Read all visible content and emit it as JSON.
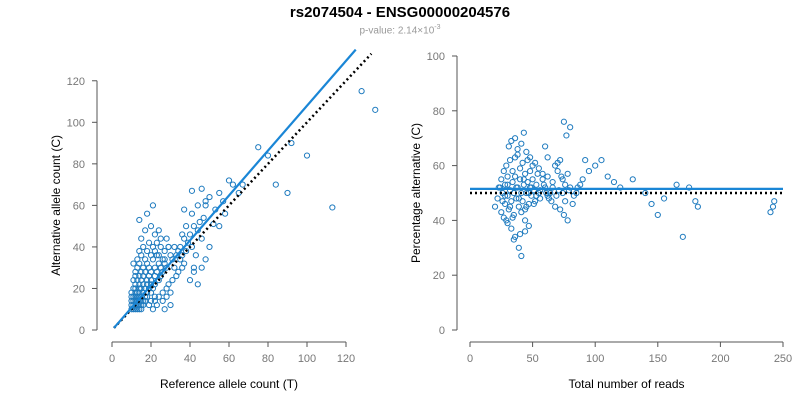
{
  "title": "rs2074504 - ENSG00000204576",
  "subtitle": {
    "prefix": "p-value: 2.14×10",
    "exponent": "-3"
  },
  "colors": {
    "points": "#1f7bbf",
    "fit": "#1a86d6",
    "reference": "#000000",
    "axis": "#555555",
    "ticks": "#777777"
  },
  "chart_data": [
    {
      "type": "scatter",
      "xlabel": "Reference allele count (T)",
      "ylabel": "Alternative allele count (C)",
      "xlim": [
        0,
        140
      ],
      "ylim": [
        0,
        130
      ],
      "xticks": [
        0,
        20,
        40,
        60,
        80,
        100,
        120
      ],
      "yticks": [
        0,
        20,
        40,
        60,
        80,
        100,
        120
      ],
      "grid": false,
      "fit_line": {
        "x": [
          1,
          125
        ],
        "y": [
          1,
          135
        ]
      },
      "reference_line": {
        "x": [
          1,
          133
        ],
        "y": [
          1,
          133
        ]
      },
      "points": [
        [
          10,
          10
        ],
        [
          11,
          10
        ],
        [
          12,
          10
        ],
        [
          13,
          10
        ],
        [
          14,
          10
        ],
        [
          15,
          10
        ],
        [
          10,
          12
        ],
        [
          11,
          12
        ],
        [
          12,
          12
        ],
        [
          13,
          12
        ],
        [
          14,
          12
        ],
        [
          15,
          12
        ],
        [
          16,
          12
        ],
        [
          10,
          14
        ],
        [
          11,
          14
        ],
        [
          12,
          14
        ],
        [
          13,
          14
        ],
        [
          14,
          14
        ],
        [
          15,
          14
        ],
        [
          16,
          14
        ],
        [
          17,
          14
        ],
        [
          10,
          16
        ],
        [
          11,
          16
        ],
        [
          12,
          16
        ],
        [
          13,
          16
        ],
        [
          14,
          16
        ],
        [
          15,
          16
        ],
        [
          17,
          16
        ],
        [
          18,
          16
        ],
        [
          10,
          18
        ],
        [
          12,
          18
        ],
        [
          13,
          18
        ],
        [
          14,
          18
        ],
        [
          16,
          18
        ],
        [
          18,
          18
        ],
        [
          20,
          18
        ],
        [
          11,
          20
        ],
        [
          12,
          20
        ],
        [
          14,
          20
        ],
        [
          15,
          20
        ],
        [
          17,
          20
        ],
        [
          19,
          20
        ],
        [
          21,
          20
        ],
        [
          12,
          22
        ],
        [
          14,
          22
        ],
        [
          16,
          22
        ],
        [
          18,
          22
        ],
        [
          20,
          22
        ],
        [
          22,
          22
        ],
        [
          11,
          24
        ],
        [
          13,
          24
        ],
        [
          15,
          24
        ],
        [
          18,
          24
        ],
        [
          20,
          24
        ],
        [
          24,
          24
        ],
        [
          12,
          26
        ],
        [
          14,
          26
        ],
        [
          16,
          26
        ],
        [
          19,
          26
        ],
        [
          22,
          26
        ],
        [
          25,
          26
        ],
        [
          12,
          28
        ],
        [
          15,
          28
        ],
        [
          17,
          28
        ],
        [
          20,
          28
        ],
        [
          23,
          28
        ],
        [
          26,
          28
        ],
        [
          13,
          30
        ],
        [
          16,
          30
        ],
        [
          19,
          30
        ],
        [
          22,
          30
        ],
        [
          25,
          30
        ],
        [
          28,
          30
        ],
        [
          11,
          32
        ],
        [
          14,
          32
        ],
        [
          18,
          32
        ],
        [
          24,
          32
        ],
        [
          27,
          32
        ],
        [
          13,
          34
        ],
        [
          17,
          34
        ],
        [
          21,
          34
        ],
        [
          26,
          34
        ],
        [
          15,
          36
        ],
        [
          20,
          36
        ],
        [
          24,
          36
        ],
        [
          30,
          36
        ],
        [
          14,
          38
        ],
        [
          18,
          38
        ],
        [
          22,
          38
        ],
        [
          27,
          38
        ],
        [
          16,
          40
        ],
        [
          21,
          40
        ],
        [
          25,
          40
        ],
        [
          29,
          40
        ],
        [
          19,
          42
        ],
        [
          23,
          42
        ],
        [
          22,
          46
        ],
        [
          28,
          44
        ],
        [
          15,
          44
        ],
        [
          17,
          48
        ],
        [
          14,
          53
        ],
        [
          18,
          56
        ],
        [
          21,
          60
        ],
        [
          20,
          50
        ],
        [
          25,
          44
        ],
        [
          24,
          48
        ],
        [
          20,
          14
        ],
        [
          22,
          14
        ],
        [
          24,
          16
        ],
        [
          26,
          18
        ],
        [
          28,
          20
        ],
        [
          22,
          16
        ],
        [
          19,
          12
        ],
        [
          21,
          10
        ],
        [
          23,
          12
        ],
        [
          26,
          14
        ],
        [
          28,
          16
        ],
        [
          30,
          12
        ],
        [
          27,
          10
        ],
        [
          29,
          22
        ],
        [
          31,
          24
        ],
        [
          33,
          26
        ],
        [
          30,
          18
        ],
        [
          32,
          30
        ],
        [
          34,
          28
        ],
        [
          35,
          34
        ],
        [
          36,
          36
        ],
        [
          38,
          38
        ],
        [
          33,
          36
        ],
        [
          37,
          32
        ],
        [
          35,
          40
        ],
        [
          31,
          34
        ],
        [
          36,
          30
        ],
        [
          32,
          40
        ],
        [
          34,
          38
        ],
        [
          37,
          44
        ],
        [
          39,
          42
        ],
        [
          40,
          46
        ],
        [
          42,
          50
        ],
        [
          44,
          48
        ],
        [
          41,
          40
        ],
        [
          43,
          36
        ],
        [
          42,
          30
        ],
        [
          45,
          52
        ],
        [
          47,
          54
        ],
        [
          36,
          46
        ],
        [
          38,
          50
        ],
        [
          46,
          44
        ],
        [
          41,
          56
        ],
        [
          44,
          60
        ],
        [
          48,
          62
        ],
        [
          50,
          64
        ],
        [
          37,
          58
        ],
        [
          41,
          67
        ],
        [
          46,
          68
        ],
        [
          48,
          60
        ],
        [
          55,
          66
        ],
        [
          62,
          70
        ],
        [
          65,
          66
        ],
        [
          75,
          88
        ],
        [
          80,
          84
        ],
        [
          84,
          70
        ],
        [
          90,
          66
        ],
        [
          92,
          90
        ],
        [
          100,
          84
        ],
        [
          113,
          59
        ],
        [
          128,
          115
        ],
        [
          135,
          106
        ],
        [
          53,
          58
        ],
        [
          57,
          62
        ],
        [
          60,
          72
        ],
        [
          67,
          70
        ],
        [
          52,
          51
        ],
        [
          55,
          50
        ],
        [
          58,
          56
        ],
        [
          42,
          28
        ],
        [
          40,
          24
        ],
        [
          44,
          22
        ],
        [
          46,
          30
        ],
        [
          48,
          34
        ],
        [
          50,
          40
        ],
        [
          27,
          34
        ],
        [
          29,
          40
        ],
        [
          25,
          30
        ],
        [
          23,
          36
        ]
      ]
    },
    {
      "type": "scatter",
      "xlabel": "Total number of reads",
      "ylabel": "Percentage alternative (C)",
      "xlim": [
        0,
        250
      ],
      "ylim": [
        0,
        100
      ],
      "xticks": [
        0,
        50,
        100,
        150,
        200,
        250
      ],
      "yticks": [
        0,
        20,
        40,
        60,
        80,
        100
      ],
      "grid": false,
      "fit_line": {
        "y": 51.5
      },
      "reference_line": {
        "y": 50
      },
      "points": [
        [
          20,
          45
        ],
        [
          22,
          48
        ],
        [
          24,
          52
        ],
        [
          25,
          55
        ],
        [
          26,
          50
        ],
        [
          27,
          58
        ],
        [
          28,
          46
        ],
        [
          28,
          53
        ],
        [
          29,
          60
        ],
        [
          30,
          49
        ],
        [
          30,
          56
        ],
        [
          31,
          44
        ],
        [
          32,
          51
        ],
        [
          32,
          62
        ],
        [
          33,
          47
        ],
        [
          34,
          54
        ],
        [
          34,
          58
        ],
        [
          35,
          42
        ],
        [
          35,
          50
        ],
        [
          36,
          56
        ],
        [
          36,
          63
        ],
        [
          37,
          48
        ],
        [
          38,
          52
        ],
        [
          38,
          66
        ],
        [
          39,
          45
        ],
        [
          40,
          55
        ],
        [
          40,
          59
        ],
        [
          41,
          50
        ],
        [
          42,
          47
        ],
        [
          42,
          61
        ],
        [
          43,
          53
        ],
        [
          44,
          44
        ],
        [
          44,
          57
        ],
        [
          45,
          50
        ],
        [
          46,
          54
        ],
        [
          46,
          62
        ],
        [
          47,
          46
        ],
        [
          48,
          52
        ],
        [
          48,
          58
        ],
        [
          49,
          49
        ],
        [
          50,
          55
        ],
        [
          50,
          60
        ],
        [
          51,
          51
        ],
        [
          52,
          47
        ],
        [
          53,
          53
        ],
        [
          54,
          57
        ],
        [
          55,
          50
        ],
        [
          56,
          48
        ],
        [
          58,
          55
        ],
        [
          60,
          52
        ],
        [
          62,
          56
        ],
        [
          64,
          50
        ],
        [
          66,
          54
        ],
        [
          68,
          60
        ],
        [
          70,
          58
        ],
        [
          72,
          62
        ],
        [
          74,
          55
        ],
        [
          76,
          53
        ],
        [
          78,
          57
        ],
        [
          80,
          52
        ],
        [
          25,
          43
        ],
        [
          27,
          41
        ],
        [
          30,
          39
        ],
        [
          33,
          37
        ],
        [
          36,
          34
        ],
        [
          39,
          30
        ],
        [
          41,
          27
        ],
        [
          44,
          36
        ],
        [
          47,
          38
        ],
        [
          29,
          40
        ],
        [
          31,
          67
        ],
        [
          33,
          69
        ],
        [
          36,
          70
        ],
        [
          38,
          64
        ],
        [
          41,
          68
        ],
        [
          43,
          72
        ],
        [
          45,
          65
        ],
        [
          48,
          63
        ],
        [
          52,
          61
        ],
        [
          55,
          59
        ],
        [
          58,
          57
        ],
        [
          62,
          49
        ],
        [
          65,
          47
        ],
        [
          68,
          45
        ],
        [
          72,
          44
        ],
        [
          75,
          42
        ],
        [
          78,
          40
        ],
        [
          82,
          46
        ],
        [
          85,
          50
        ],
        [
          88,
          53
        ],
        [
          90,
          55
        ],
        [
          95,
          58
        ],
        [
          100,
          60
        ],
        [
          105,
          62
        ],
        [
          110,
          56
        ],
        [
          115,
          54
        ],
        [
          120,
          52
        ],
        [
          130,
          55
        ],
        [
          140,
          50
        ],
        [
          145,
          46
        ],
        [
          150,
          42
        ],
        [
          155,
          48
        ],
        [
          165,
          53
        ],
        [
          170,
          34
        ],
        [
          175,
          52
        ],
        [
          180,
          47
        ],
        [
          182,
          45
        ],
        [
          240,
          43
        ],
        [
          242,
          45
        ],
        [
          243,
          47
        ],
        [
          75,
          76
        ],
        [
          77,
          71
        ],
        [
          60,
          67
        ],
        [
          62,
          63
        ],
        [
          70,
          61
        ],
        [
          73,
          56
        ],
        [
          80,
          74
        ],
        [
          92,
          62
        ],
        [
          23,
          52
        ],
        [
          26,
          47
        ],
        [
          28,
          49
        ],
        [
          30,
          53
        ],
        [
          32,
          45
        ],
        [
          34,
          41
        ],
        [
          37,
          52
        ],
        [
          39,
          48
        ],
        [
          41,
          43
        ],
        [
          43,
          55
        ],
        [
          45,
          45
        ],
        [
          47,
          50
        ],
        [
          49,
          52
        ],
        [
          51,
          46
        ],
        [
          53,
          49
        ],
        [
          56,
          51
        ],
        [
          59,
          53
        ],
        [
          61,
          50
        ],
        [
          63,
          48
        ],
        [
          66,
          52
        ],
        [
          69,
          49
        ],
        [
          71,
          51
        ],
        [
          74,
          50
        ],
        [
          76,
          47
        ],
        [
          79,
          51
        ],
        [
          83,
          49
        ],
        [
          86,
          52
        ],
        [
          35,
          33
        ],
        [
          40,
          35
        ],
        [
          44,
          40
        ]
      ]
    }
  ]
}
